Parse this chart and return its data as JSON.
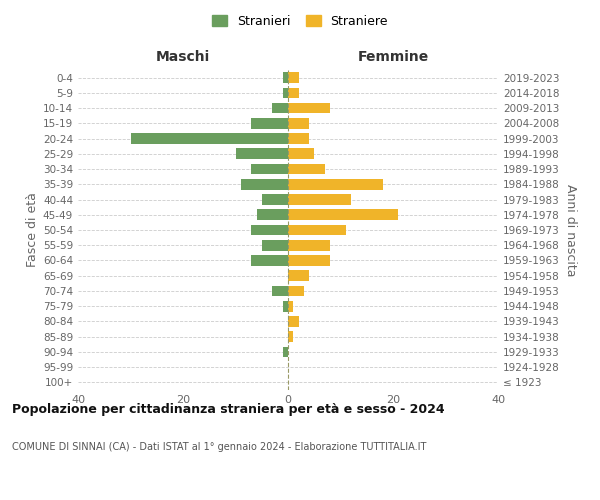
{
  "age_groups": [
    "100+",
    "95-99",
    "90-94",
    "85-89",
    "80-84",
    "75-79",
    "70-74",
    "65-69",
    "60-64",
    "55-59",
    "50-54",
    "45-49",
    "40-44",
    "35-39",
    "30-34",
    "25-29",
    "20-24",
    "15-19",
    "10-14",
    "5-9",
    "0-4"
  ],
  "birth_years": [
    "≤ 1923",
    "1924-1928",
    "1929-1933",
    "1934-1938",
    "1939-1943",
    "1944-1948",
    "1949-1953",
    "1954-1958",
    "1959-1963",
    "1964-1968",
    "1969-1973",
    "1974-1978",
    "1979-1983",
    "1984-1988",
    "1989-1993",
    "1994-1998",
    "1999-2003",
    "2004-2008",
    "2009-2013",
    "2014-2018",
    "2019-2023"
  ],
  "maschi": [
    0,
    0,
    1,
    0,
    0,
    1,
    3,
    0,
    7,
    5,
    7,
    6,
    5,
    9,
    7,
    10,
    30,
    7,
    3,
    1,
    1
  ],
  "femmine": [
    0,
    0,
    0,
    1,
    2,
    1,
    3,
    4,
    8,
    8,
    11,
    21,
    12,
    18,
    7,
    5,
    4,
    4,
    8,
    2,
    2
  ],
  "color_maschi": "#6a9e5e",
  "color_femmine": "#f0b429",
  "title_main": "Popolazione per cittadinanza straniera per età e sesso - 2024",
  "title_sub": "COMUNE DI SINNAI (CA) - Dati ISTAT al 1° gennaio 2024 - Elaborazione TUTTITALIA.IT",
  "label_maschi": "Stranieri",
  "label_femmine": "Straniere",
  "xlabel_left": "Maschi",
  "xlabel_right": "Femmine",
  "ylabel_left": "Fasce di età",
  "ylabel_right": "Anni di nascita",
  "xlim": 40,
  "bg_color": "#ffffff",
  "grid_color": "#cccccc",
  "text_color": "#666666"
}
